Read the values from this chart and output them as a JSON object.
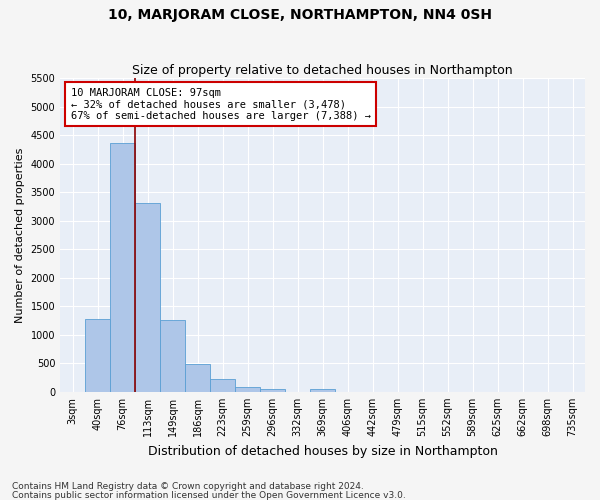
{
  "title": "10, MARJORAM CLOSE, NORTHAMPTON, NN4 0SH",
  "subtitle": "Size of property relative to detached houses in Northampton",
  "xlabel": "Distribution of detached houses by size in Northampton",
  "ylabel": "Number of detached properties",
  "footnote1": "Contains HM Land Registry data © Crown copyright and database right 2024.",
  "footnote2": "Contains public sector information licensed under the Open Government Licence v3.0.",
  "bar_labels": [
    "3sqm",
    "40sqm",
    "76sqm",
    "113sqm",
    "149sqm",
    "186sqm",
    "223sqm",
    "259sqm",
    "296sqm",
    "332sqm",
    "369sqm",
    "406sqm",
    "442sqm",
    "479sqm",
    "515sqm",
    "552sqm",
    "589sqm",
    "625sqm",
    "662sqm",
    "698sqm",
    "735sqm"
  ],
  "bar_values": [
    0,
    1270,
    4360,
    3310,
    1265,
    490,
    220,
    90,
    55,
    0,
    55,
    0,
    0,
    0,
    0,
    0,
    0,
    0,
    0,
    0,
    0
  ],
  "bar_color": "#aec6e8",
  "bar_edge_color": "#5a9fd4",
  "vline_color": "#8b0000",
  "ylim": [
    0,
    5500
  ],
  "yticks": [
    0,
    500,
    1000,
    1500,
    2000,
    2500,
    3000,
    3500,
    4000,
    4500,
    5000,
    5500
  ],
  "annotation_text": "10 MARJORAM CLOSE: 97sqm\n← 32% of detached houses are smaller (3,478)\n67% of semi-detached houses are larger (7,388) →",
  "annotation_box_color": "#ffffff",
  "annotation_border_color": "#cc0000",
  "plot_bg_color": "#e8eef7",
  "fig_bg_color": "#f5f5f5",
  "grid_color": "#ffffff",
  "title_fontsize": 10,
  "subtitle_fontsize": 9,
  "xlabel_fontsize": 9,
  "ylabel_fontsize": 8,
  "tick_fontsize": 7,
  "annot_fontsize": 7.5,
  "footnote_fontsize": 6.5
}
